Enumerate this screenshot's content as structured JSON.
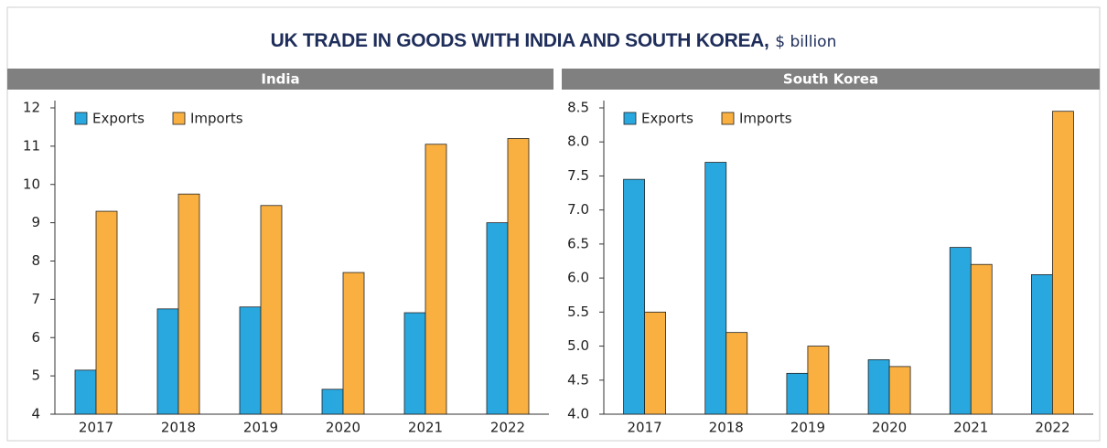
{
  "title": "UK TRADE IN GOODS WITH INDIA AND SOUTH KOREA,",
  "subtitle": "$ billion",
  "chart_data": [
    {
      "type": "bar",
      "title": "India",
      "categories": [
        "2017",
        "2018",
        "2019",
        "2020",
        "2021",
        "2022"
      ],
      "series": [
        {
          "name": "Exports",
          "color": "#29a8e0",
          "values": [
            5.15,
            6.75,
            6.8,
            4.65,
            6.65,
            9.0
          ]
        },
        {
          "name": "Imports",
          "color": "#f9b041",
          "values": [
            9.3,
            9.75,
            9.45,
            7.7,
            11.05,
            11.2
          ]
        }
      ],
      "ylim": [
        4,
        12
      ],
      "yticks": [
        4,
        5,
        6,
        7,
        8,
        9,
        10,
        11,
        12
      ],
      "legend": "top-left"
    },
    {
      "type": "bar",
      "title": "South Korea",
      "categories": [
        "2017",
        "2018",
        "2019",
        "2020",
        "2021",
        "2022"
      ],
      "series": [
        {
          "name": "Exports",
          "color": "#29a8e0",
          "values": [
            7.45,
            7.7,
            4.6,
            4.8,
            6.45,
            6.05
          ]
        },
        {
          "name": "Imports",
          "color": "#f9b041",
          "values": [
            5.5,
            5.2,
            5.0,
            4.7,
            6.2,
            8.45
          ]
        }
      ],
      "ylim": [
        4,
        8.5
      ],
      "yticks": [
        {
          "value": 4,
          "label": "4.0"
        },
        4.5,
        {
          "value": 5,
          "label": "5.0"
        },
        5.5,
        {
          "value": 6,
          "label": "6.0"
        },
        6.5,
        {
          "value": 7,
          "label": "7.0"
        },
        7.5,
        {
          "value": 8,
          "label": "8.0"
        },
        8.5
      ],
      "legend": "top-left"
    }
  ]
}
